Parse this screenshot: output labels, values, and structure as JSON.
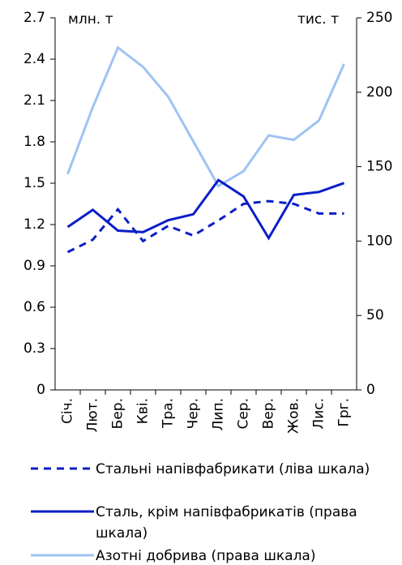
{
  "chart_data": {
    "type": "line",
    "categories": [
      "Січ.",
      "Лют.",
      "Бер.",
      "Кві.",
      "Тра.",
      "Чер.",
      "Лип.",
      "Сер.",
      "Вер.",
      "Жов.",
      "Лис.",
      "Грг."
    ],
    "series": [
      {
        "name": "Стальні напівфабрикати (ліва шкала)",
        "color": "#0a1ec8",
        "dash": true,
        "axis": "y",
        "values": [
          1.0,
          1.09,
          1.31,
          1.08,
          1.19,
          1.12,
          1.23,
          1.35,
          1.37,
          1.35,
          1.28,
          1.28
        ]
      },
      {
        "name": "Сталь, крім напівфабрикатів (права шкала)",
        "color": "#0a1ec8",
        "dash": false,
        "axis": "y2",
        "values": [
          109.5,
          121,
          107,
          106,
          114,
          118,
          141,
          130,
          102,
          131,
          133,
          139
        ]
      },
      {
        "name": "Азотні добрива (права шкала)",
        "color": "#9ec3f2",
        "dash": false,
        "axis": "y2",
        "values": [
          145,
          190,
          230,
          217,
          197,
          167,
          137,
          147,
          171,
          168,
          181,
          219
        ]
      }
    ],
    "ylim": [
      0,
      2.7
    ],
    "yticks": [
      0,
      0.3,
      0.6,
      0.9,
      1.2,
      1.5,
      1.8,
      2.1,
      2.4,
      2.7
    ],
    "y2lim": [
      0,
      250
    ],
    "y2ticks": [
      0,
      50,
      100,
      150,
      200,
      250
    ],
    "ylabel": "млн. т",
    "y2label": "тис. т"
  }
}
